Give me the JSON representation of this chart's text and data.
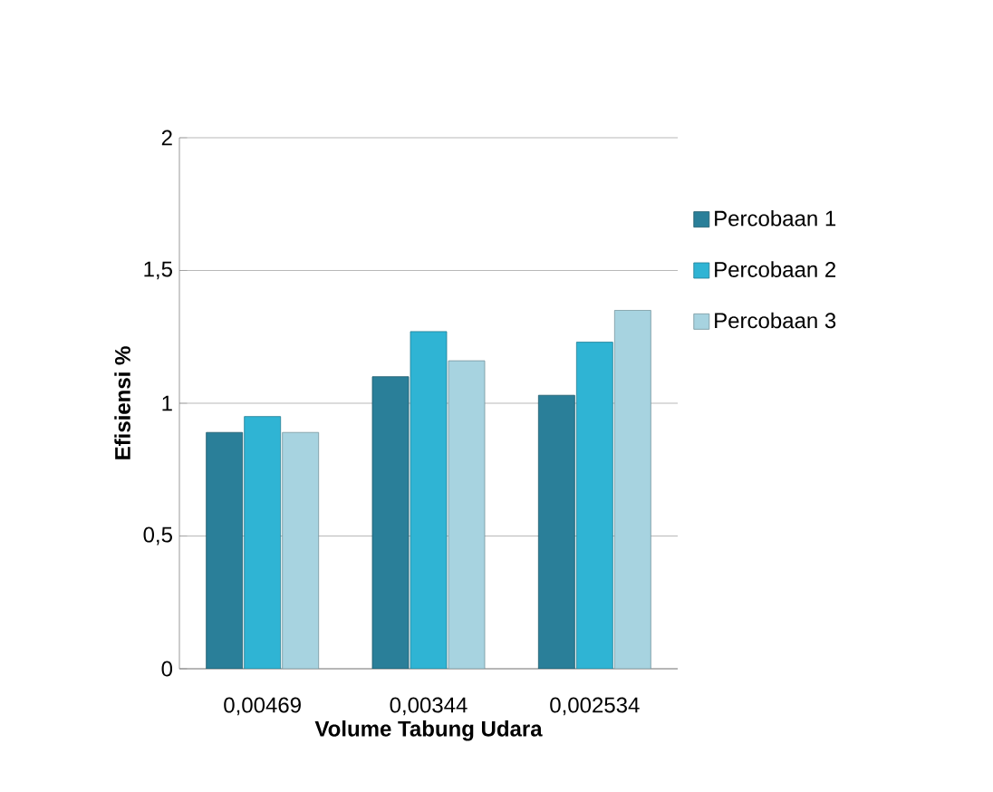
{
  "chart_data": {
    "type": "bar",
    "xlabel": "Volume Tabung Udara",
    "ylabel": "Efisiensi %",
    "categories": [
      "0,00469",
      "0,00344",
      "0,002534"
    ],
    "series": [
      {
        "name": "Percobaan 1",
        "color": "#2a7f99",
        "values": [
          0.89,
          1.1,
          1.03
        ]
      },
      {
        "name": "Percobaan 2",
        "color": "#2fb4d4",
        "values": [
          0.95,
          1.27,
          1.23
        ]
      },
      {
        "name": "Percobaan 3",
        "color": "#a7d3e0",
        "values": [
          0.89,
          1.16,
          1.35
        ]
      }
    ],
    "ylim": [
      0,
      2
    ],
    "yticks": [
      0,
      {
        "value": 0.5,
        "label": "0,5"
      },
      1,
      {
        "value": 1.5,
        "label": "1,5"
      },
      2
    ],
    "grid": "y",
    "legend": "right"
  }
}
